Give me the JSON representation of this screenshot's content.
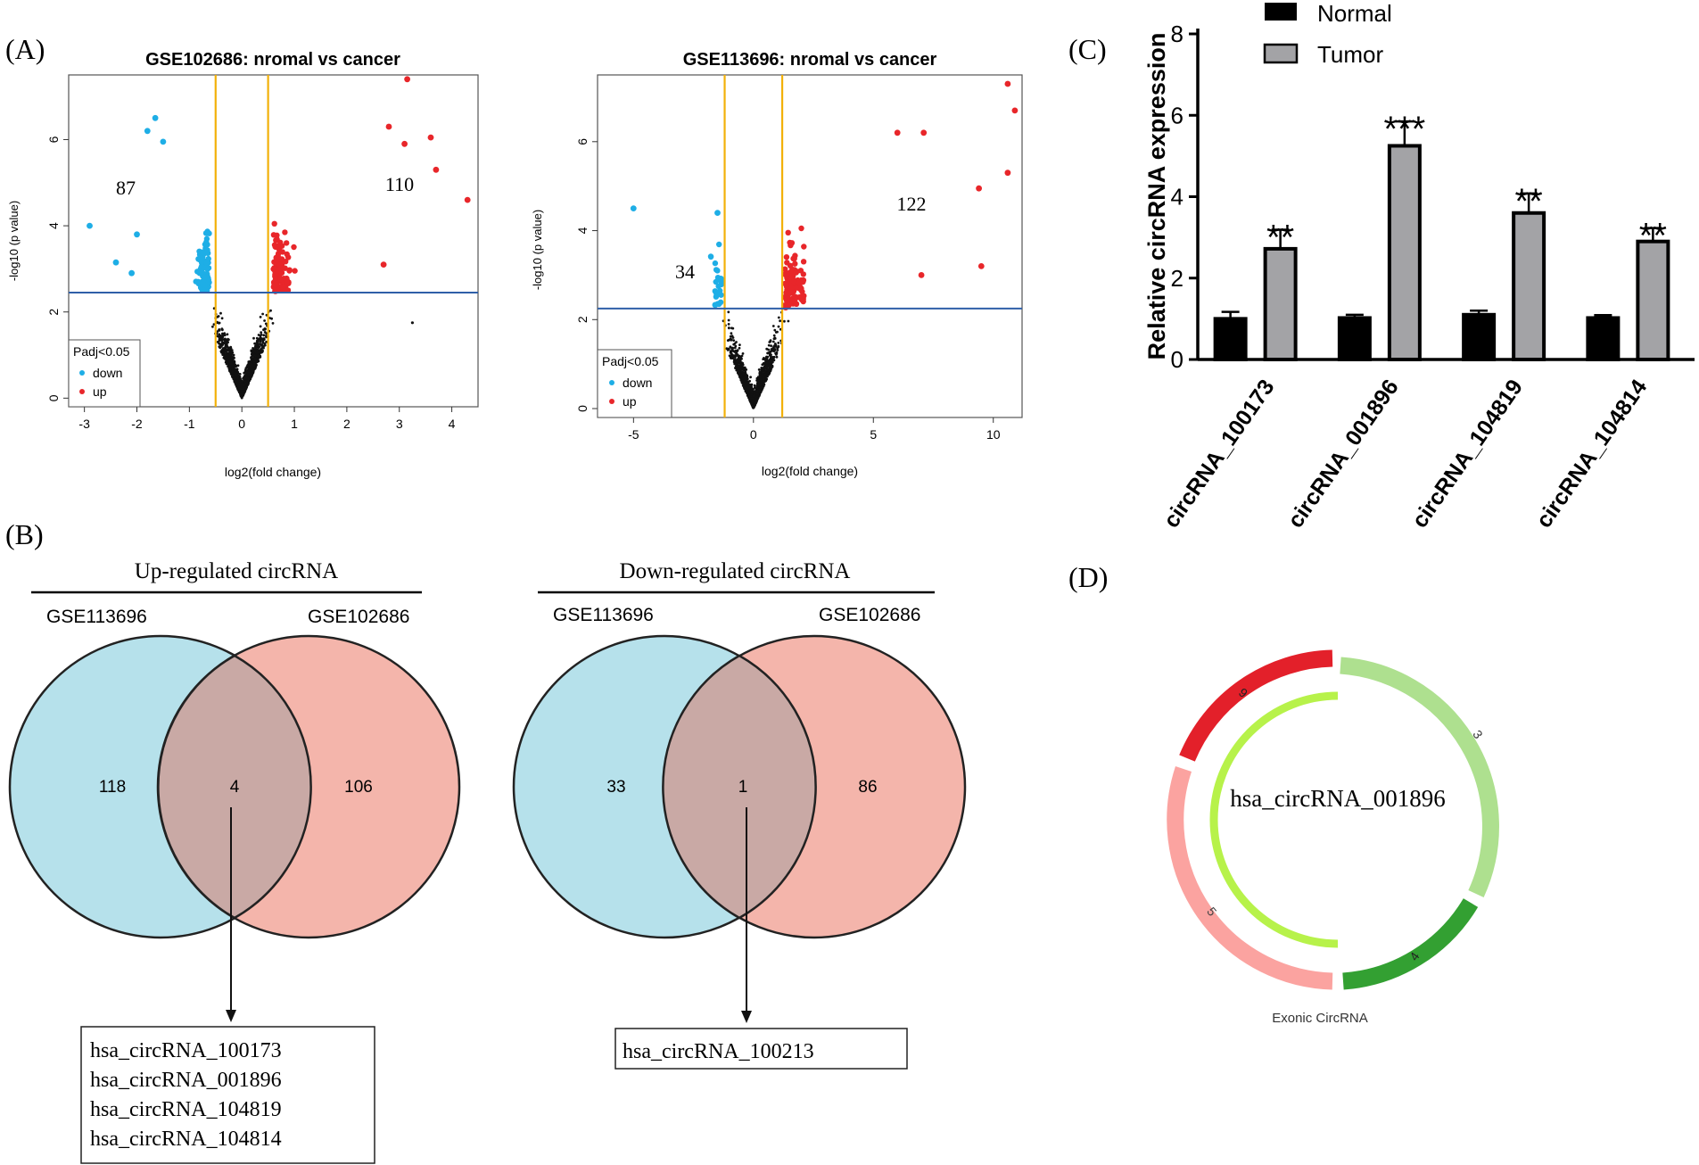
{
  "panel_labels": {
    "a": "(A)",
    "b": "(B)",
    "c": "(C)",
    "d": "(D)"
  },
  "colors": {
    "down": "#1eaee6",
    "up": "#e8262a",
    "ns": "#111111",
    "threshold": "#f2b10a",
    "pline": "#2f5fa8",
    "venn_blue": "#b6e1eb",
    "venn_red": "#f4b5ab",
    "venn_overlap": "#c9a9a5",
    "normal_bar": "#000000",
    "tumor_bar": "#a3a3a6",
    "ring_red": "#e3202a",
    "ring_lightgreen": "#aee08f",
    "ring_darkgreen": "#33a032",
    "ring_pink": "#fba3a0",
    "ring_inner": "#b7f24a"
  },
  "chart_data": [
    {
      "type": "scatter",
      "id": "volcano1",
      "title": "GSE102686: nromal vs cancer",
      "xlabel": "log2(fold change)",
      "ylabel": "-log10 (p value)",
      "xlim": [
        -3.3,
        4.5
      ],
      "ylim": [
        -0.2,
        7.5
      ],
      "xticks": [
        -3,
        -2,
        -1,
        0,
        1,
        2,
        3,
        4
      ],
      "yticks": [
        0,
        2,
        4,
        6
      ],
      "fc_threshold": [
        -0.5,
        0.5
      ],
      "p_threshold": 2.45,
      "counts": {
        "down": "87",
        "up": "110"
      },
      "legend": {
        "title": "Padj<0.05",
        "down": "down",
        "up": "up"
      },
      "highlight_points": [
        [
          -2.9,
          4.0
        ],
        [
          -2.4,
          3.15
        ],
        [
          -2.0,
          3.8
        ],
        [
          -1.8,
          6.2
        ],
        [
          -1.65,
          6.5
        ],
        [
          -1.5,
          5.95
        ],
        [
          -2.1,
          2.9
        ],
        [
          3.15,
          7.4
        ],
        [
          3.6,
          6.05
        ],
        [
          4.3,
          4.6
        ],
        [
          2.8,
          6.3
        ],
        [
          3.1,
          5.9
        ],
        [
          3.7,
          5.3
        ],
        [
          2.7,
          3.1
        ],
        [
          3.25,
          1.75
        ]
      ]
    },
    {
      "type": "scatter",
      "id": "volcano2",
      "title": "GSE113696: nromal vs cancer",
      "xlabel": "log2(fold change)",
      "ylabel": "-log10 (p value)",
      "xlim": [
        -6.5,
        11.2
      ],
      "ylim": [
        -0.2,
        7.5
      ],
      "xticks": [
        -5,
        0,
        5,
        10
      ],
      "yticks": [
        0,
        2,
        4,
        6
      ],
      "fc_threshold": [
        -1.2,
        1.2
      ],
      "p_threshold": 2.25,
      "counts": {
        "down": "34",
        "up": "122"
      },
      "legend": {
        "title": "Padj<0.05",
        "down": "down",
        "up": "up"
      },
      "highlight_points": [
        [
          10.6,
          7.3
        ],
        [
          10.9,
          6.7
        ],
        [
          10.6,
          5.3
        ],
        [
          9.5,
          3.2
        ],
        [
          6.0,
          6.2
        ],
        [
          7.1,
          6.2
        ],
        [
          -5.0,
          4.5
        ],
        [
          -1.5,
          4.4
        ],
        [
          7.0,
          3.0
        ],
        [
          9.4,
          4.95
        ]
      ]
    },
    {
      "type": "bar",
      "id": "expression",
      "ylabel": "Relative circRNA  expression",
      "categories": [
        "circRNA_100173",
        "circRNA_001896",
        "circRNA_104819",
        "circRNA_104814"
      ],
      "series": [
        {
          "name": "Normal",
          "values": [
            1.0,
            1.02,
            1.1,
            1.02
          ],
          "errors": [
            0.17,
            0.08,
            0.1,
            0.07
          ]
        },
        {
          "name": "Tumor",
          "values": [
            2.72,
            5.25,
            3.6,
            2.9
          ],
          "errors": [
            0.47,
            0.6,
            0.48,
            0.33
          ]
        }
      ],
      "significance": [
        "**",
        "***",
        "**",
        "**"
      ],
      "ylim": [
        0,
        8
      ],
      "yticks": [
        0,
        2,
        4,
        6,
        8
      ],
      "legend_position": "top-left"
    }
  ],
  "venn_up": {
    "title": "Up-regulated circRNA",
    "left_label": "GSE113696",
    "right_label": "GSE102686",
    "left_only": "118",
    "overlap": "4",
    "right_only": "106",
    "genes": [
      "hsa_circRNA_100173",
      "hsa_circRNA_001896",
      "hsa_circRNA_104819",
      "hsa_circRNA_104814"
    ]
  },
  "venn_down": {
    "title": "Down-regulated circRNA",
    "left_label": "GSE113696",
    "right_label": "GSE102686",
    "left_only": "33",
    "overlap": "1",
    "right_only": "86",
    "genes": [
      "hsa_circRNA_100213"
    ]
  },
  "circ_diagram": {
    "name": "hsa_circRNA_001896",
    "caption": "Exonic CircRNA",
    "exons": [
      {
        "label": "3",
        "color": "#aee08f"
      },
      {
        "label": "4",
        "color": "#33a032"
      },
      {
        "label": "5",
        "color": "#fba3a0"
      },
      {
        "label": "6",
        "color": "#e3202a"
      }
    ]
  }
}
